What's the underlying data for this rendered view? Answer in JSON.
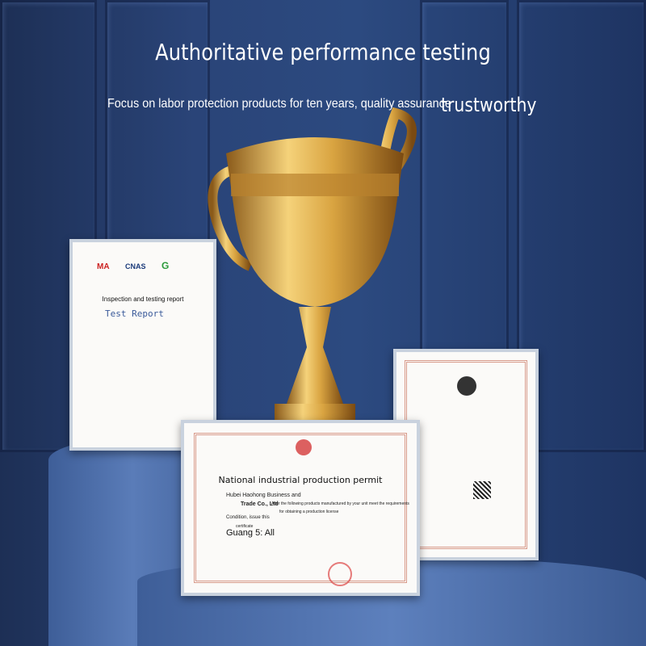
{
  "headline": "Authoritative performance testing",
  "subline": "Focus on labor protection products for ten years, quality assurance",
  "subline_tail": "trustworthy",
  "report_certificate": {
    "logos": [
      "MA",
      "CNAS",
      "G"
    ],
    "heading": "Inspection and testing report",
    "title": "Test Report"
  },
  "permit_certificate": {
    "title": "National industrial production permit",
    "company": "Hubei Haohong Business and",
    "company_tail": "Trade Co., Ltd",
    "body_1": "After the following products manufactured by your unit meet the requirements",
    "body_2": "for obtaining a production license",
    "condition": "Condition, issue this",
    "certificate": "certificate",
    "scope": "Guang 5: All"
  },
  "colors": {
    "background": "#2a4478",
    "gold": "#d9a441",
    "pedestal": "#4a6ca6",
    "cert_border": "#d89a8a"
  }
}
